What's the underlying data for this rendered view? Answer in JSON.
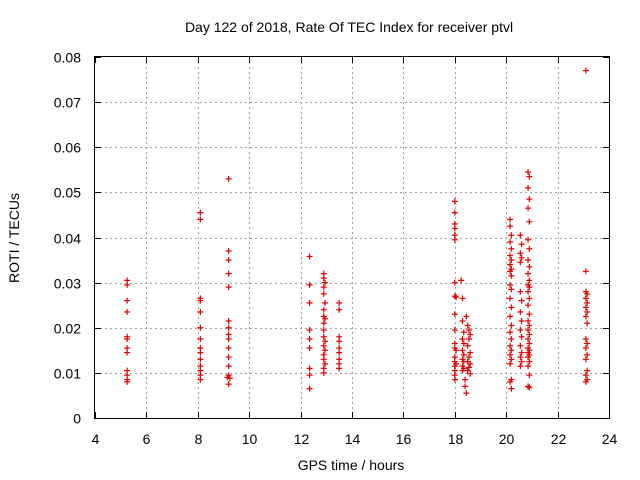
{
  "chart_data": {
    "type": "scatter",
    "title": "Day 122 of 2018, Rate Of TEC Index for receiver ptvl",
    "xlabel": "GPS time / hours",
    "ylabel": "ROTI / TECUs",
    "xlim": [
      4,
      24
    ],
    "ylim": [
      0,
      0.08
    ],
    "xticks": [
      4,
      6,
      8,
      10,
      12,
      14,
      16,
      18,
      20,
      22,
      24
    ],
    "yticks": [
      0,
      0.01,
      0.02,
      0.03,
      0.04,
      0.05,
      0.06,
      0.07,
      0.08
    ],
    "xtick_labels": [
      "4",
      "6",
      "8",
      "10",
      "12",
      "14",
      "16",
      "18",
      "20",
      "22",
      "24"
    ],
    "ytick_labels": [
      "0",
      "0.01",
      "0.02",
      "0.03",
      "0.04",
      "0.05",
      "0.06",
      "0.07",
      "0.08"
    ],
    "grid": true,
    "marker": "+",
    "color": "#e00000",
    "series": [
      {
        "name": "ROTI",
        "points": [
          [
            5.25,
            0.0305
          ],
          [
            5.25,
            0.0295
          ],
          [
            5.25,
            0.026
          ],
          [
            5.25,
            0.0235
          ],
          [
            5.25,
            0.018
          ],
          [
            5.25,
            0.0175
          ],
          [
            5.25,
            0.0155
          ],
          [
            5.25,
            0.0145
          ],
          [
            5.25,
            0.0105
          ],
          [
            5.25,
            0.0095
          ],
          [
            5.25,
            0.0085
          ],
          [
            5.25,
            0.008
          ],
          [
            8.1,
            0.0455
          ],
          [
            8.1,
            0.044
          ],
          [
            8.1,
            0.0265
          ],
          [
            8.1,
            0.026
          ],
          [
            8.1,
            0.0235
          ],
          [
            8.1,
            0.02
          ],
          [
            8.1,
            0.0175
          ],
          [
            8.1,
            0.0155
          ],
          [
            8.1,
            0.0145
          ],
          [
            8.1,
            0.013
          ],
          [
            8.1,
            0.0115
          ],
          [
            8.1,
            0.0105
          ],
          [
            8.1,
            0.0095
          ],
          [
            8.1,
            0.0085
          ],
          [
            9.2,
            0.053
          ],
          [
            9.2,
            0.037
          ],
          [
            9.2,
            0.035
          ],
          [
            9.2,
            0.032
          ],
          [
            9.2,
            0.029
          ],
          [
            9.2,
            0.0215
          ],
          [
            9.2,
            0.02
          ],
          [
            9.2,
            0.0185
          ],
          [
            9.2,
            0.0175
          ],
          [
            9.2,
            0.0155
          ],
          [
            9.2,
            0.0135
          ],
          [
            9.2,
            0.0115
          ],
          [
            9.2,
            0.0095
          ],
          [
            9.15,
            0.009
          ],
          [
            9.25,
            0.0088
          ],
          [
            9.2,
            0.0075
          ],
          [
            12.35,
            0.0358
          ],
          [
            12.35,
            0.0295
          ],
          [
            12.35,
            0.0255
          ],
          [
            12.35,
            0.0195
          ],
          [
            12.35,
            0.0175
          ],
          [
            12.35,
            0.0155
          ],
          [
            12.35,
            0.011
          ],
          [
            12.35,
            0.0095
          ],
          [
            12.35,
            0.0065
          ],
          [
            12.9,
            0.032
          ],
          [
            12.9,
            0.031
          ],
          [
            12.95,
            0.03
          ],
          [
            12.9,
            0.029
          ],
          [
            12.9,
            0.0275
          ],
          [
            12.95,
            0.0255
          ],
          [
            12.9,
            0.024
          ],
          [
            12.9,
            0.0225
          ],
          [
            12.95,
            0.022
          ],
          [
            12.9,
            0.021
          ],
          [
            12.9,
            0.0195
          ],
          [
            12.9,
            0.018
          ],
          [
            12.95,
            0.017
          ],
          [
            12.9,
            0.016
          ],
          [
            12.95,
            0.015
          ],
          [
            12.9,
            0.014
          ],
          [
            12.9,
            0.013
          ],
          [
            12.95,
            0.012
          ],
          [
            12.9,
            0.011
          ],
          [
            12.9,
            0.01
          ],
          [
            13.5,
            0.0255
          ],
          [
            13.5,
            0.024
          ],
          [
            13.5,
            0.018
          ],
          [
            13.5,
            0.017
          ],
          [
            13.5,
            0.0155
          ],
          [
            13.5,
            0.0145
          ],
          [
            13.5,
            0.013
          ],
          [
            13.5,
            0.012
          ],
          [
            13.5,
            0.011
          ],
          [
            18.0,
            0.048
          ],
          [
            18.0,
            0.0455
          ],
          [
            18.0,
            0.043
          ],
          [
            18.0,
            0.042
          ],
          [
            18.0,
            0.0405
          ],
          [
            18.0,
            0.0395
          ],
          [
            18.0,
            0.03
          ],
          [
            18.0,
            0.027
          ],
          [
            18.05,
            0.0268
          ],
          [
            18.0,
            0.023
          ],
          [
            18.0,
            0.0195
          ],
          [
            18.0,
            0.0165
          ],
          [
            18.0,
            0.0155
          ],
          [
            18.05,
            0.015
          ],
          [
            18.0,
            0.0135
          ],
          [
            18.0,
            0.0125
          ],
          [
            18.05,
            0.012
          ],
          [
            18.0,
            0.0115
          ],
          [
            18.0,
            0.0105
          ],
          [
            18.0,
            0.0095
          ],
          [
            18.0,
            0.0085
          ],
          [
            18.25,
            0.0305
          ],
          [
            18.3,
            0.0265
          ],
          [
            18.3,
            0.0215
          ],
          [
            18.35,
            0.019
          ],
          [
            18.3,
            0.0175
          ],
          [
            18.35,
            0.0165
          ],
          [
            18.3,
            0.015
          ],
          [
            18.35,
            0.014
          ],
          [
            18.3,
            0.013
          ],
          [
            18.35,
            0.0125
          ],
          [
            18.3,
            0.0115
          ],
          [
            18.35,
            0.011
          ],
          [
            18.3,
            0.0105
          ],
          [
            18.4,
            0.0085
          ],
          [
            18.4,
            0.007
          ],
          [
            18.45,
            0.0055
          ],
          [
            18.45,
            0.0225
          ],
          [
            18.5,
            0.0205
          ],
          [
            18.55,
            0.0195
          ],
          [
            18.6,
            0.0185
          ],
          [
            18.55,
            0.0175
          ],
          [
            18.5,
            0.016
          ],
          [
            18.6,
            0.0145
          ],
          [
            18.55,
            0.0135
          ],
          [
            18.5,
            0.0125
          ],
          [
            18.6,
            0.012
          ],
          [
            18.55,
            0.0112
          ],
          [
            18.5,
            0.0105
          ],
          [
            18.6,
            0.0098
          ],
          [
            20.15,
            0.044
          ],
          [
            20.15,
            0.0425
          ],
          [
            20.2,
            0.0405
          ],
          [
            20.15,
            0.039
          ],
          [
            20.2,
            0.0375
          ],
          [
            20.15,
            0.036
          ],
          [
            20.2,
            0.035
          ],
          [
            20.15,
            0.034
          ],
          [
            20.2,
            0.033
          ],
          [
            20.15,
            0.0325
          ],
          [
            20.2,
            0.0315
          ],
          [
            20.15,
            0.0295
          ],
          [
            20.2,
            0.0285
          ],
          [
            20.15,
            0.0265
          ],
          [
            20.2,
            0.0245
          ],
          [
            20.15,
            0.0225
          ],
          [
            20.2,
            0.0205
          ],
          [
            20.15,
            0.019
          ],
          [
            20.2,
            0.0175
          ],
          [
            20.15,
            0.016
          ],
          [
            20.2,
            0.015
          ],
          [
            20.15,
            0.014
          ],
          [
            20.2,
            0.013
          ],
          [
            20.15,
            0.012
          ],
          [
            20.2,
            0.0085
          ],
          [
            20.15,
            0.008
          ],
          [
            20.2,
            0.0065
          ],
          [
            20.55,
            0.0405
          ],
          [
            20.6,
            0.0385
          ],
          [
            20.55,
            0.0365
          ],
          [
            20.6,
            0.0355
          ],
          [
            20.55,
            0.0345
          ],
          [
            20.55,
            0.028
          ],
          [
            20.6,
            0.026
          ],
          [
            20.55,
            0.0235
          ],
          [
            20.6,
            0.0215
          ],
          [
            20.55,
            0.0195
          ],
          [
            20.6,
            0.018
          ],
          [
            20.55,
            0.016
          ],
          [
            20.6,
            0.0145
          ],
          [
            20.55,
            0.0135
          ],
          [
            20.6,
            0.0125
          ],
          [
            20.55,
            0.0115
          ],
          [
            20.85,
            0.0545
          ],
          [
            20.9,
            0.0535
          ],
          [
            20.85,
            0.051
          ],
          [
            20.9,
            0.0485
          ],
          [
            20.85,
            0.0465
          ],
          [
            20.9,
            0.0435
          ],
          [
            20.85,
            0.0395
          ],
          [
            20.9,
            0.0375
          ],
          [
            20.85,
            0.035
          ],
          [
            20.9,
            0.0335
          ],
          [
            20.85,
            0.032
          ],
          [
            20.9,
            0.0305
          ],
          [
            20.85,
            0.0295
          ],
          [
            20.9,
            0.029
          ],
          [
            20.85,
            0.028
          ],
          [
            20.9,
            0.0265
          ],
          [
            20.85,
            0.025
          ],
          [
            20.9,
            0.023
          ],
          [
            20.85,
            0.0215
          ],
          [
            20.9,
            0.0205
          ],
          [
            20.85,
            0.0195
          ],
          [
            20.9,
            0.0185
          ],
          [
            20.85,
            0.0175
          ],
          [
            20.9,
            0.0165
          ],
          [
            20.85,
            0.0155
          ],
          [
            20.9,
            0.015
          ],
          [
            20.85,
            0.0145
          ],
          [
            20.9,
            0.014
          ],
          [
            20.85,
            0.0135
          ],
          [
            20.9,
            0.0125
          ],
          [
            20.85,
            0.0115
          ],
          [
            20.9,
            0.0095
          ],
          [
            20.85,
            0.007
          ],
          [
            20.9,
            0.0068
          ],
          [
            23.1,
            0.077
          ],
          [
            23.1,
            0.0325
          ],
          [
            23.1,
            0.028
          ],
          [
            23.15,
            0.0275
          ],
          [
            23.1,
            0.0265
          ],
          [
            23.15,
            0.0255
          ],
          [
            23.1,
            0.0245
          ],
          [
            23.15,
            0.0235
          ],
          [
            23.1,
            0.0225
          ],
          [
            23.15,
            0.021
          ],
          [
            23.1,
            0.0175
          ],
          [
            23.15,
            0.0165
          ],
          [
            23.1,
            0.0155
          ],
          [
            23.15,
            0.014
          ],
          [
            23.1,
            0.013
          ],
          [
            23.15,
            0.0105
          ],
          [
            23.1,
            0.0095
          ],
          [
            23.15,
            0.0085
          ],
          [
            23.1,
            0.008
          ]
        ]
      }
    ]
  }
}
